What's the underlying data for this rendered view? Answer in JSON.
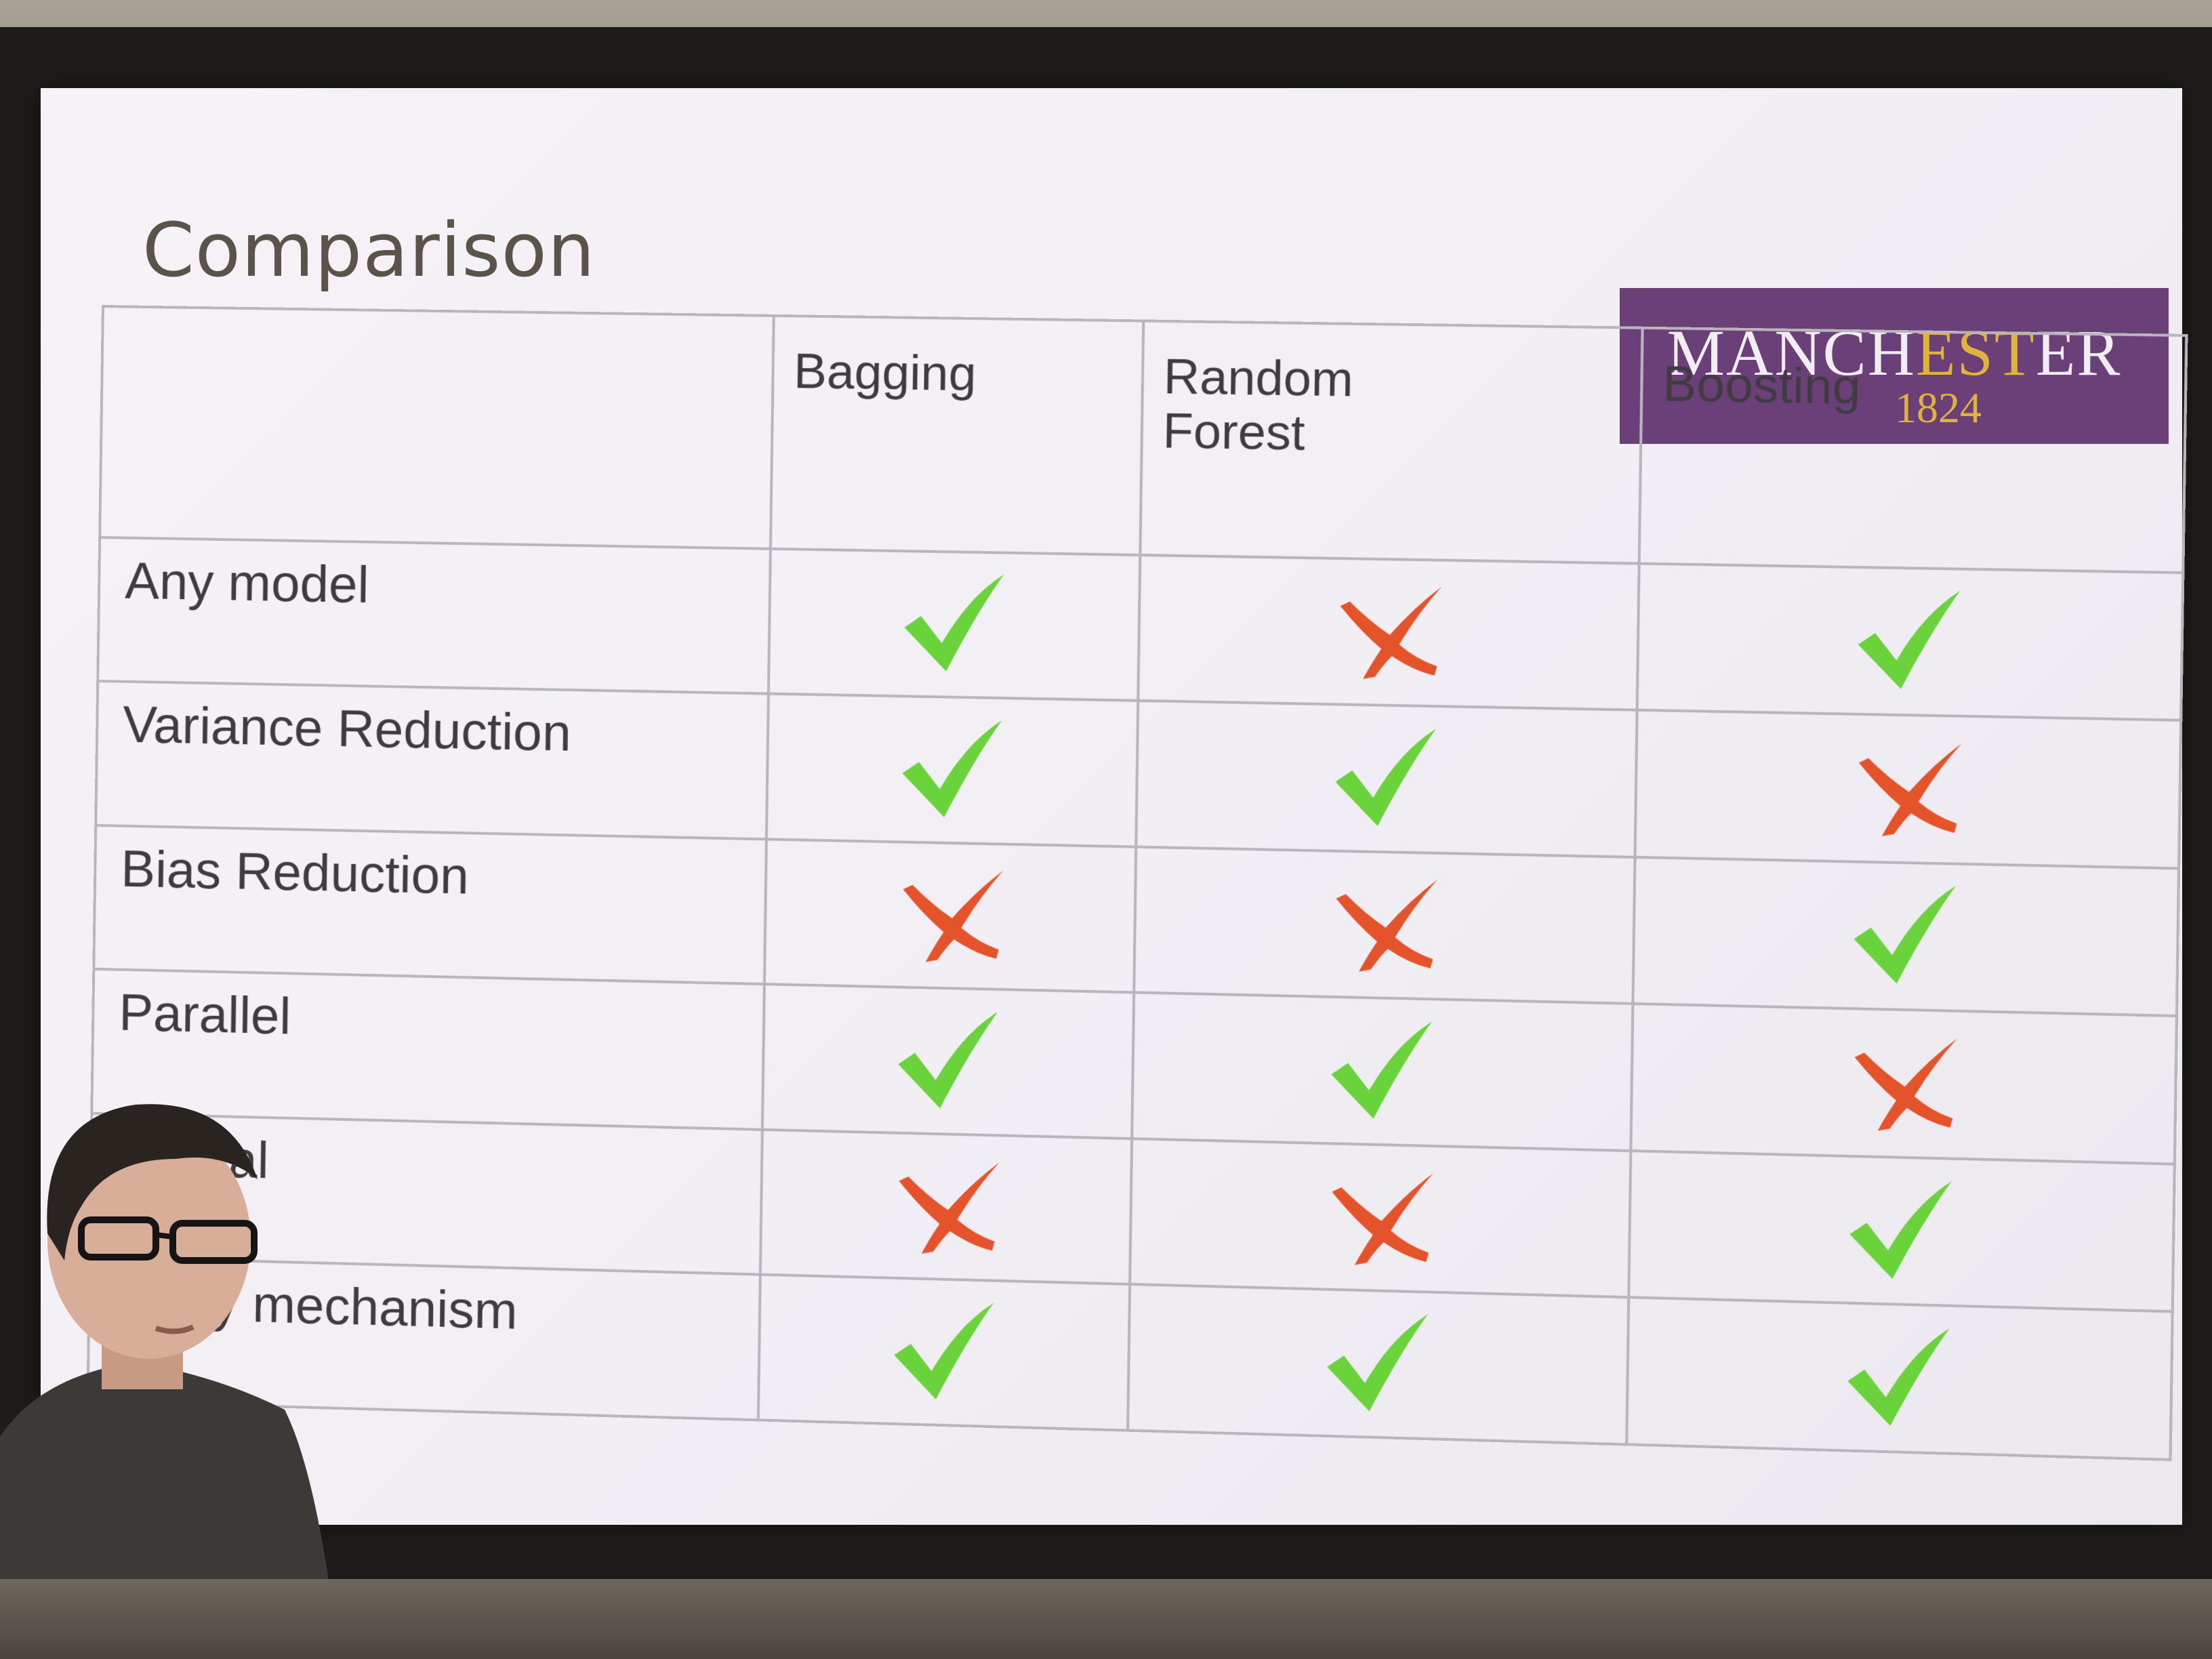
{
  "slide": {
    "title": "Comparison",
    "logo": {
      "name_part1": "MANCH",
      "name_gold": "EST",
      "name_part3": "ER",
      "year": "1824"
    },
    "columns": [
      "Bagging",
      "Random Forest",
      "Boosting"
    ],
    "column_lines": [
      [
        "Bagging"
      ],
      [
        "Random",
        "Forest"
      ],
      [
        "Boosting"
      ]
    ],
    "rows": [
      {
        "label": "Any model",
        "marks": [
          "check",
          "cross",
          "check"
        ]
      },
      {
        "label": "Variance Reduction",
        "marks": [
          "check",
          "check",
          "cross"
        ]
      },
      {
        "label": "Bias Reduction",
        "marks": [
          "cross",
          "cross",
          "check"
        ]
      },
      {
        "label": "Parallel",
        "marks": [
          "check",
          "check",
          "cross"
        ]
      },
      {
        "label": "uential",
        "marks": [
          "cross",
          "cross",
          "check"
        ]
      },
      {
        "label": "ersity mechanism",
        "marks": [
          "check",
          "check",
          "check"
        ]
      }
    ]
  },
  "colors": {
    "check": "#6ad23a",
    "cross": "#e4532a",
    "logo_bg": "#6b3f78",
    "logo_gold": "#e0b43a"
  }
}
